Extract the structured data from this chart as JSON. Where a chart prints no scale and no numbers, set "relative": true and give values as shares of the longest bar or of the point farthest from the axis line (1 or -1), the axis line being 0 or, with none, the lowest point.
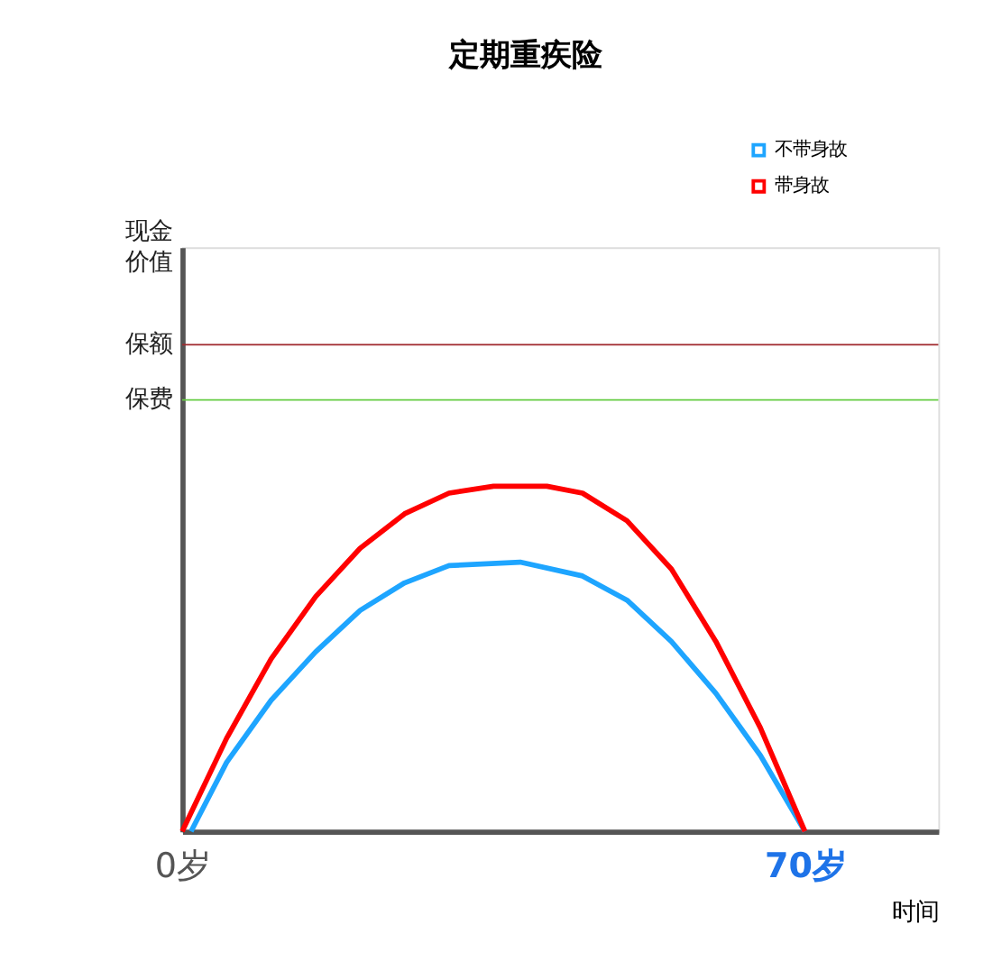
{
  "chart_data": {
    "type": "line",
    "title": "定期重疾险",
    "xlabel": "时间",
    "annotations": [
      "现金价值"
    ],
    "relative": true,
    "xlim": [
      0,
      85
    ],
    "xticks": [
      {
        "value": 0,
        "label": "0岁"
      },
      {
        "value": 70,
        "label": "70岁"
      }
    ],
    "legend": "top right",
    "grid": false,
    "line_style": "solid",
    "ref_lines": [
      {
        "axis": "y",
        "value": 1.41,
        "label": "保额",
        "color": "#a0282d"
      },
      {
        "axis": "y",
        "value": 1.25,
        "label": "保费",
        "color": "#66cc44"
      }
    ],
    "x": [
      0,
      5,
      10,
      15,
      20,
      25,
      30,
      35,
      41,
      45,
      50,
      55,
      60,
      65,
      70
    ],
    "series": [
      {
        "name": "不带身故",
        "color": "#1ea5ff",
        "x": [
          1,
          5,
          10,
          15,
          20,
          25,
          30,
          38,
          45,
          50,
          55,
          60,
          65,
          70
        ],
        "values": [
          0,
          0.2,
          0.38,
          0.52,
          0.64,
          0.72,
          0.77,
          0.78,
          0.74,
          0.67,
          0.55,
          0.4,
          0.22,
          0
        ]
      },
      {
        "name": "带身故",
        "color": "#ff0000",
        "values": [
          0,
          0.27,
          0.5,
          0.68,
          0.82,
          0.92,
          0.98,
          1.0,
          1.0,
          0.98,
          0.9,
          0.76,
          0.55,
          0.3,
          0
        ]
      }
    ]
  }
}
